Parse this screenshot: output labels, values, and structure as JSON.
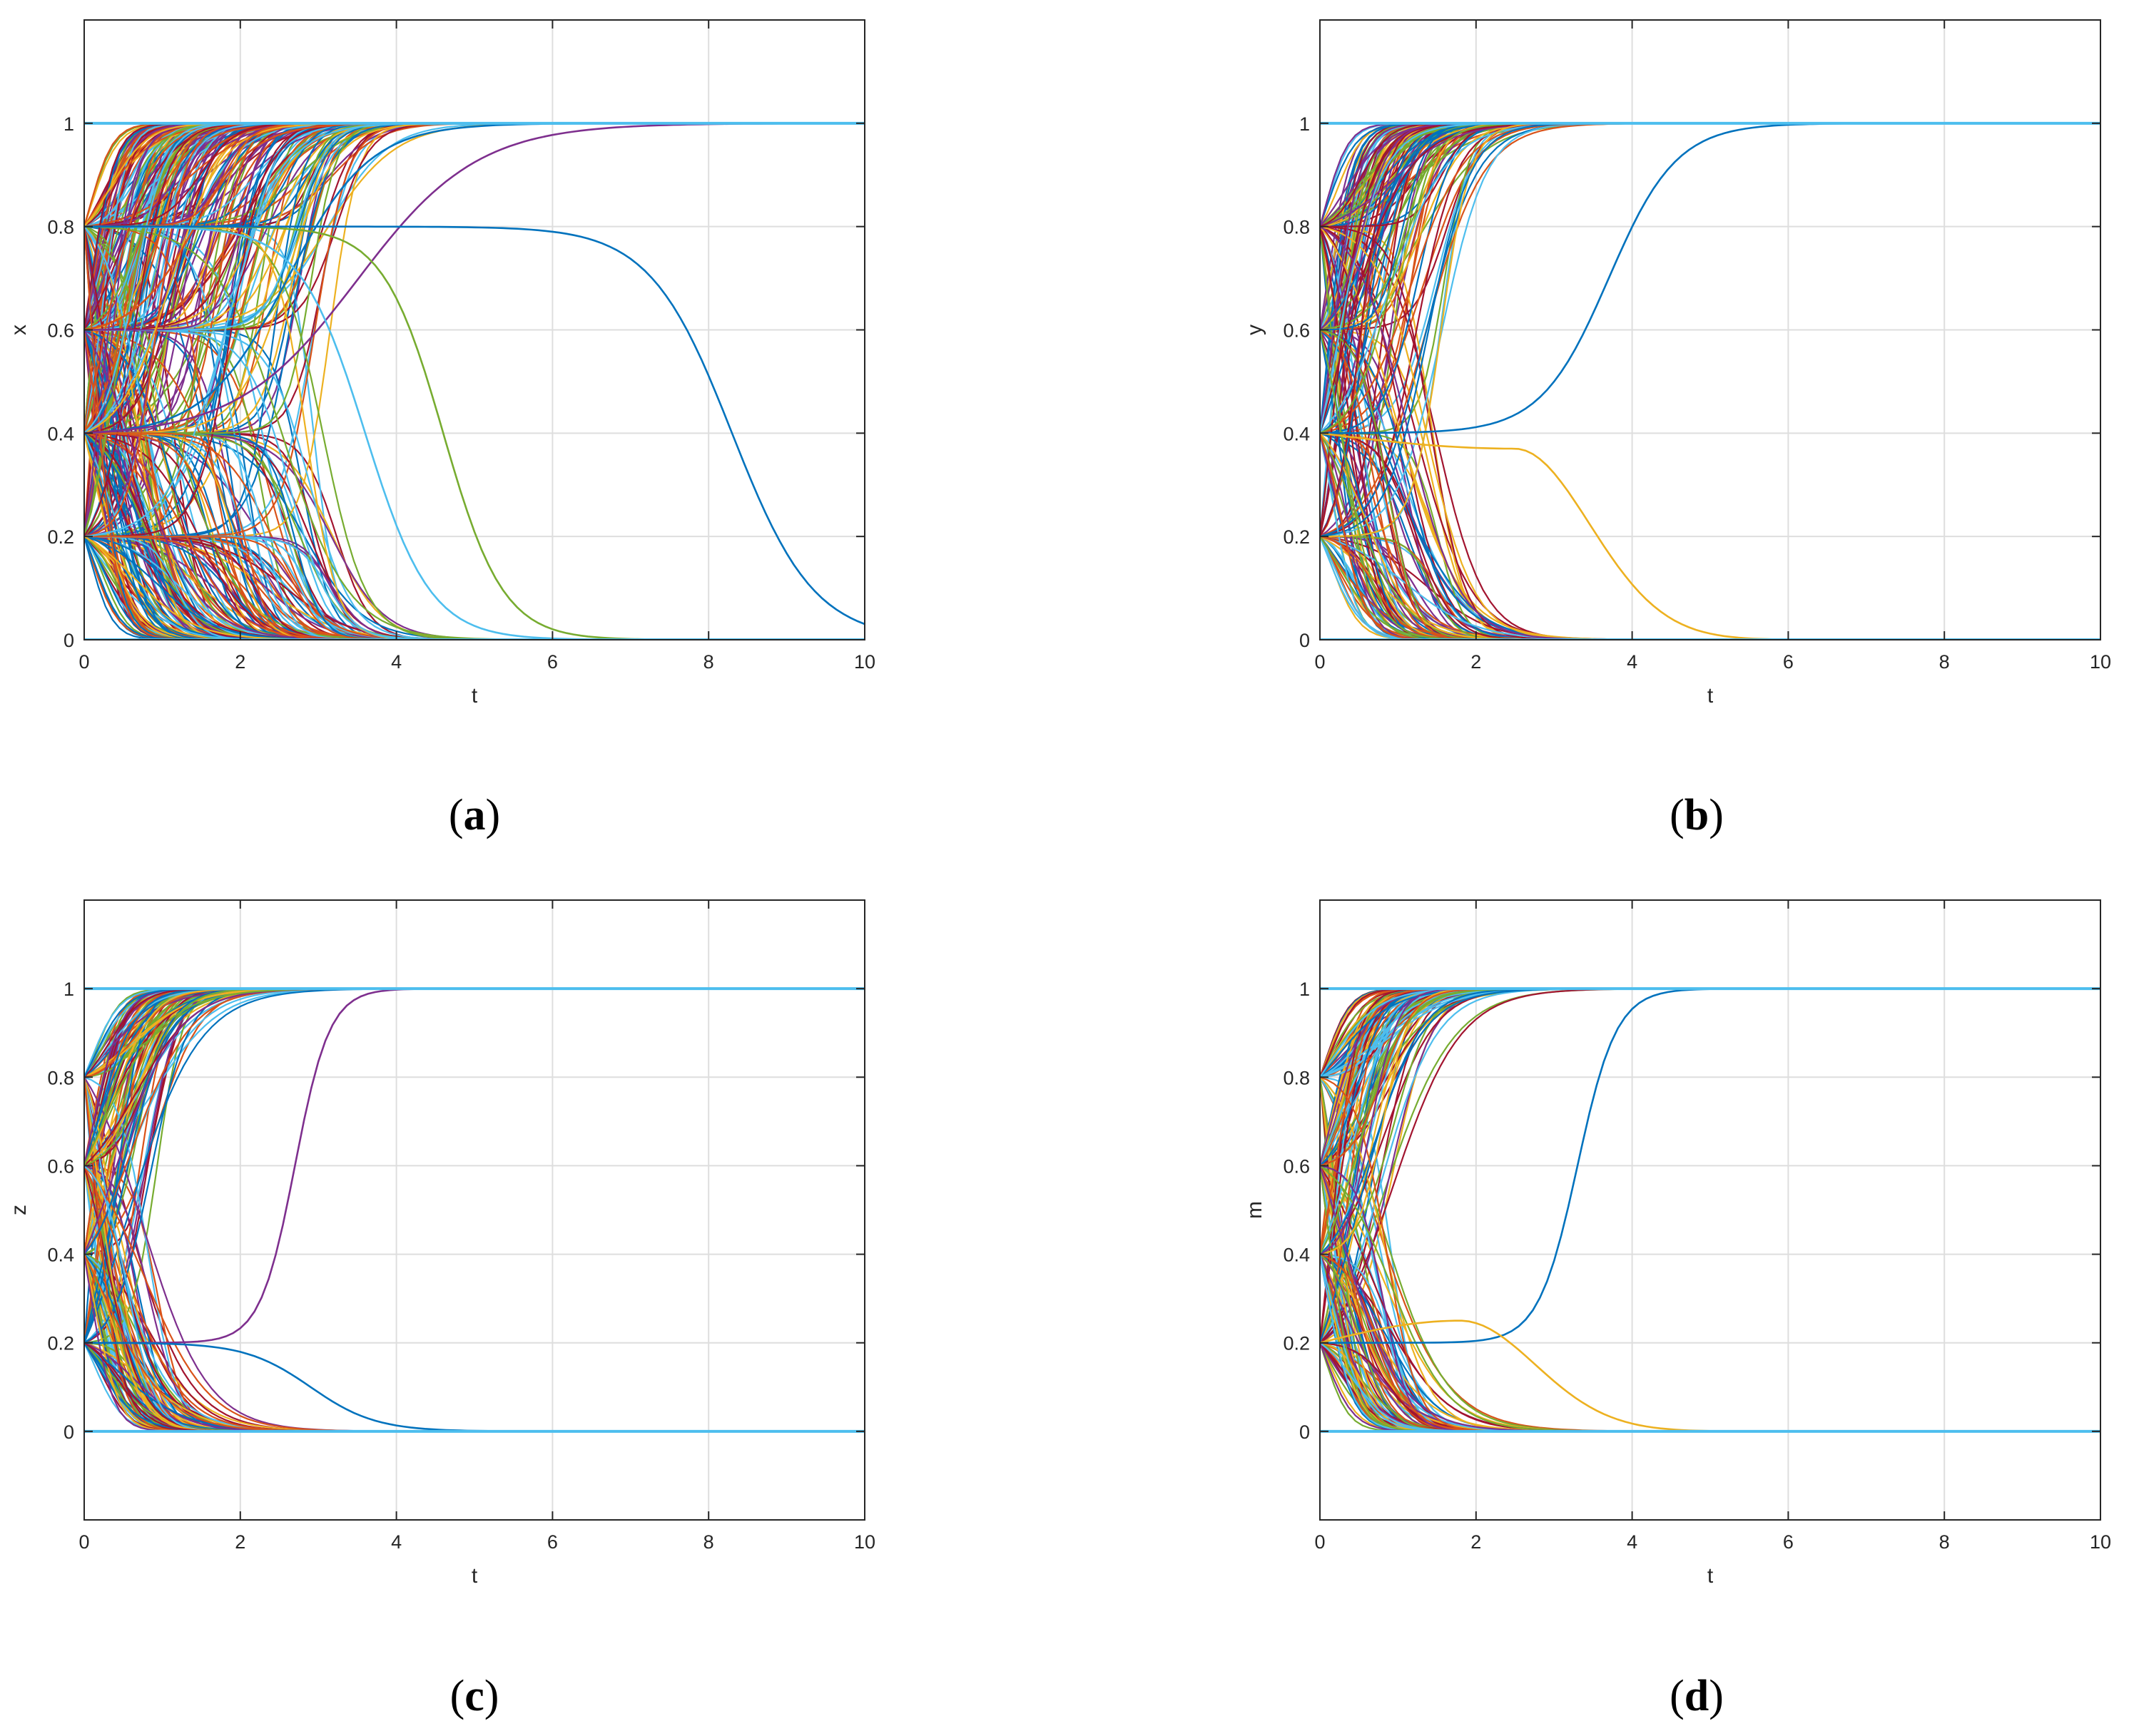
{
  "figure": {
    "panels": [
      "a",
      "b",
      "c",
      "d"
    ]
  },
  "chart_data": [
    {
      "type": "line",
      "panel": "a",
      "caption_letter": "a",
      "xlabel": "t",
      "ylabel": "x",
      "xlim": [
        0,
        10
      ],
      "ylim": [
        0,
        1.2
      ],
      "xticks": [
        "0",
        "2",
        "4",
        "6",
        "8",
        "10"
      ],
      "yticks": [
        "0",
        "0.2",
        "0.4",
        "0.6",
        "0.8",
        "1"
      ],
      "grid": true,
      "initial_values": [
        0.2,
        0.4,
        0.6,
        0.8
      ],
      "steady_states": [
        0,
        1
      ],
      "series_count_approx": 400,
      "series": [
        {
          "name": "up-slow",
          "color": "#0072BD",
          "x0": 0.4,
          "final": 1,
          "t_mid": 2.6,
          "rate": 1.9
        },
        {
          "name": "up-mid",
          "color": "#D95319",
          "x0": 0.6,
          "final": 1,
          "t_mid": 1.4,
          "rate": 2.6
        },
        {
          "name": "up-late",
          "color": "#7E2F8E",
          "x0": 0.4,
          "final": 1,
          "t_mid": 3.5,
          "rate": 1.3
        },
        {
          "name": "down-late",
          "color": "#4DBEEE",
          "x0": 0.8,
          "final": 0,
          "t_mid": 3.6,
          "rate": 2.4
        },
        {
          "name": "down-green",
          "color": "#77AC30",
          "x0": 0.8,
          "final": 0,
          "t_mid": 4.6,
          "rate": 2.6
        },
        {
          "name": "down-longest",
          "color": "#0072BD",
          "x0": 0.8,
          "final": 0,
          "t_mid": 8.3,
          "rate": 1.9
        }
      ]
    },
    {
      "type": "line",
      "panel": "b",
      "caption_letter": "b",
      "xlabel": "t",
      "ylabel": "y",
      "xlim": [
        0,
        10
      ],
      "ylim": [
        0,
        1.2
      ],
      "xticks": [
        "0",
        "2",
        "4",
        "6",
        "8",
        "10"
      ],
      "yticks": [
        "0",
        "0.2",
        "0.4",
        "0.6",
        "0.8",
        "1"
      ],
      "grid": true,
      "initial_values": [
        0.2,
        0.4,
        0.6,
        0.8
      ],
      "steady_states": [
        0,
        1
      ],
      "series_count_approx": 200,
      "series": [
        {
          "name": "up-latest",
          "color": "#0072BD",
          "x0": 0.4,
          "final": 1,
          "t_mid": 3.7,
          "rate": 2.3
        },
        {
          "name": "hump-yellow",
          "color": "#EDB120",
          "x0": 0.4,
          "final": 0,
          "peak": 0.37,
          "t_peak": 2.5
        }
      ]
    },
    {
      "type": "line",
      "panel": "c",
      "caption_letter": "c",
      "xlabel": "t",
      "ylabel": "z",
      "xlim": [
        0,
        10
      ],
      "ylim": [
        -0.2,
        1.2
      ],
      "xticks": [
        "0",
        "2",
        "4",
        "6",
        "8",
        "10"
      ],
      "yticks": [
        "0",
        "0.2",
        "0.4",
        "0.6",
        "0.8",
        "1"
      ],
      "grid": true,
      "initial_values": [
        0.2,
        0.4,
        0.6,
        0.8
      ],
      "steady_states": [
        0,
        1
      ],
      "series_count_approx": 200,
      "series": [
        {
          "name": "up-latest",
          "color": "#7E2F8E",
          "x0": 0.2,
          "final": 1,
          "t_mid": 2.7,
          "rate": 4.5
        },
        {
          "name": "down-latest",
          "color": "#0072BD",
          "x0": 0.2,
          "final": 0,
          "t_mid": 2.9,
          "rate": 2.4
        }
      ]
    },
    {
      "type": "line",
      "panel": "d",
      "caption_letter": "d",
      "xlabel": "t",
      "ylabel": "m",
      "xlim": [
        0,
        10
      ],
      "ylim": [
        -0.2,
        1.2
      ],
      "xticks": [
        "0",
        "2",
        "4",
        "6",
        "8",
        "10"
      ],
      "yticks": [
        "0",
        "0.2",
        "0.4",
        "0.6",
        "0.8",
        "1"
      ],
      "grid": true,
      "initial_values": [
        0.2,
        0.4,
        0.6,
        0.8
      ],
      "steady_states": [
        0,
        1
      ],
      "series_count_approx": 200,
      "series": [
        {
          "name": "up-latest",
          "color": "#0072BD",
          "x0": 0.2,
          "final": 1,
          "t_mid": 3.3,
          "rate": 4.0
        },
        {
          "name": "hump-yellow",
          "color": "#EDB120",
          "x0": 0.2,
          "final": 0,
          "peak": 0.25,
          "t_peak": 1.8
        }
      ]
    }
  ],
  "palette": [
    "#0072BD",
    "#D95319",
    "#EDB120",
    "#7E2F8E",
    "#77AC30",
    "#4DBEEE",
    "#A2142F"
  ]
}
